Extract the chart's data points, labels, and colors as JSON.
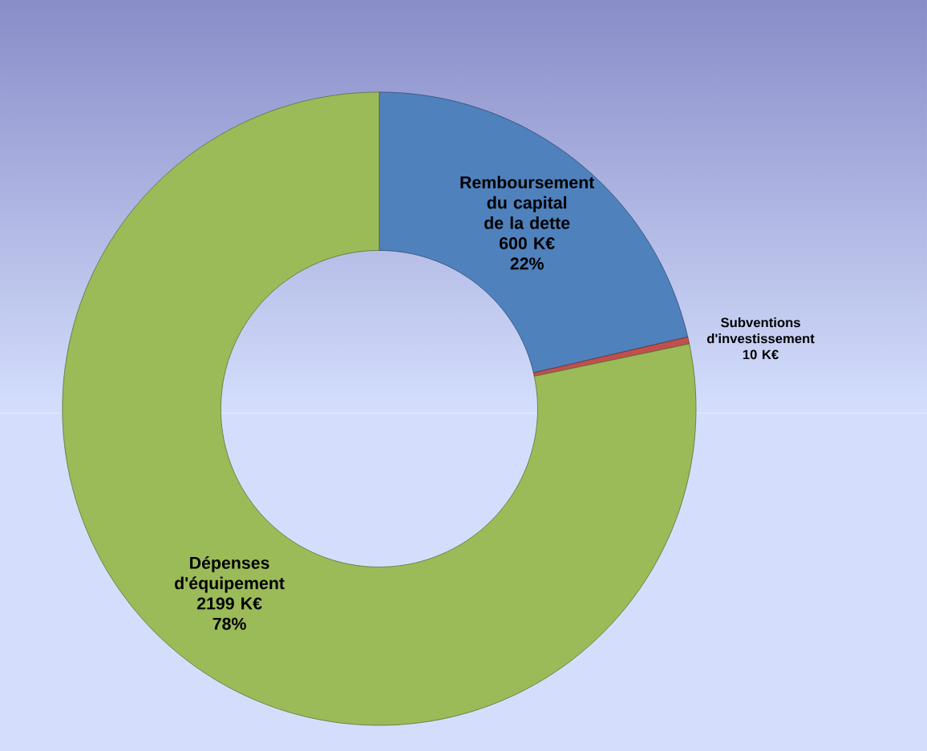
{
  "chart_data": {
    "type": "donut",
    "categories": [
      "Remboursement du capital de la dette",
      "Subventions d'investissement",
      "Dépenses d'équipement"
    ],
    "values": [
      600,
      10,
      2199
    ],
    "colors": [
      "#4f81bd",
      "#c0504d",
      "#9bbb59"
    ],
    "value_labels": [
      "600 K€",
      "10 K€",
      "2199 K€"
    ],
    "annotations": [
      {
        "text": "22%",
        "x": "Remboursement du capital de la dette"
      },
      {
        "text": "78%",
        "x": "Dépenses d'équipement"
      }
    ]
  }
}
